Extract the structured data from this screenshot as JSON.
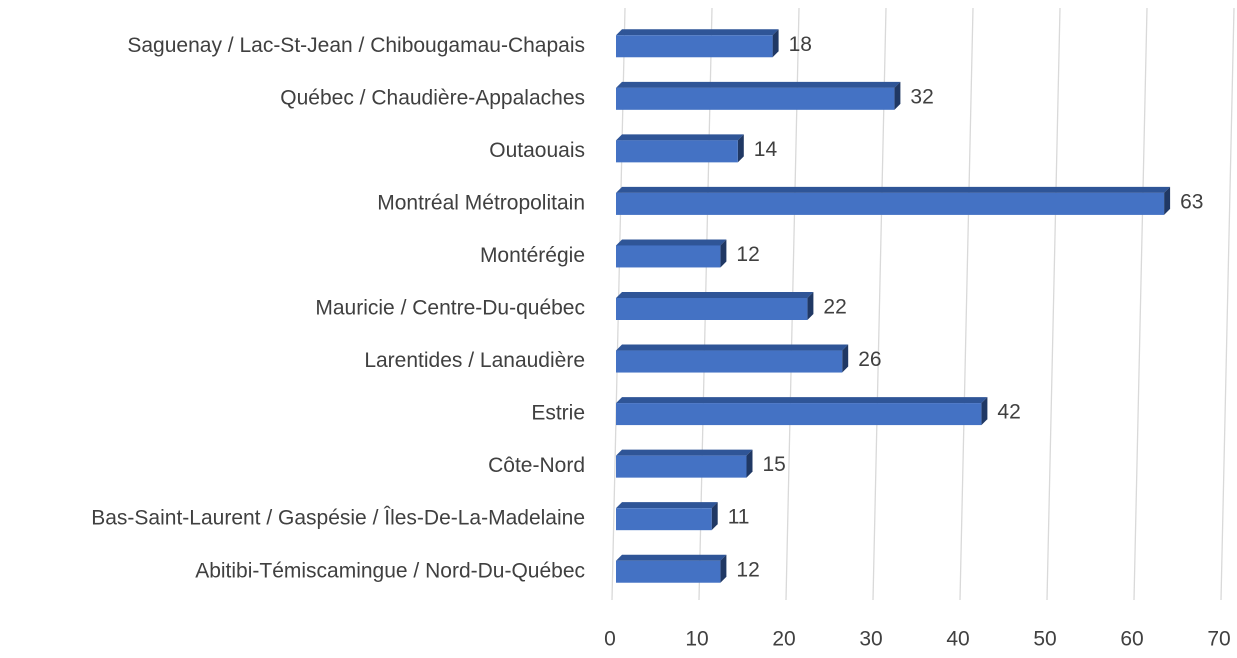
{
  "chart_data": {
    "type": "bar",
    "orientation": "horizontal",
    "categories": [
      "Saguenay / Lac-St-Jean / Chibougamau-Chapais",
      "Québec / Chaudière-Appalaches",
      "Outaouais",
      "Montréal Métropolitain",
      "Montérégie",
      "Mauricie / Centre-Du-québec",
      "Larentides / Lanaudière",
      "Estrie",
      "Côte-Nord",
      "Bas-Saint-Laurent / Gaspésie / Îles-De-La-Madelaine",
      "Abitibi-Témiscamingue / Nord-Du-Québec"
    ],
    "values": [
      18,
      32,
      14,
      63,
      12,
      22,
      26,
      42,
      15,
      11,
      12
    ],
    "color": "#4472c4",
    "xlim": [
      0,
      70
    ],
    "xticks": [
      0,
      10,
      20,
      30,
      40,
      50,
      60,
      70
    ],
    "grid": true
  }
}
